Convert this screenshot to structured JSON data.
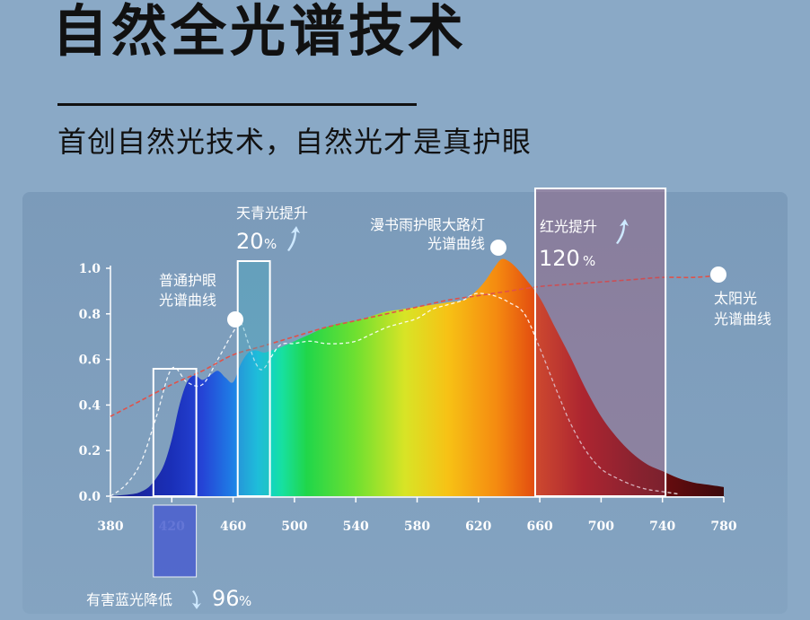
{
  "header": {
    "title": "自然全光谱技术",
    "subtitle": "首创自然光技术，自然光才是真护眼"
  },
  "chart_data": {
    "type": "area",
    "xlim": [
      380,
      780
    ],
    "ylim": [
      0,
      1.0
    ],
    "x_ticks": [
      "380",
      "420",
      "460",
      "500",
      "540",
      "580",
      "620",
      "660",
      "700",
      "740",
      "780"
    ],
    "y_ticks": [
      "0.0",
      "0.2",
      "0.4",
      "0.6",
      "0.8",
      "1.0"
    ],
    "series": [
      {
        "name": "漫书雨护眼大路灯光谱曲线",
        "style": "filled-spectrum",
        "x": [
          380,
          395,
          400,
          405,
          410,
          415,
          420,
          425,
          430,
          435,
          440,
          445,
          450,
          455,
          460,
          465,
          470,
          475,
          480,
          485,
          490,
          500,
          510,
          520,
          530,
          540,
          550,
          560,
          570,
          580,
          590,
          600,
          610,
          615,
          620,
          625,
          630,
          635,
          640,
          645,
          650,
          660,
          670,
          680,
          690,
          700,
          710,
          720,
          730,
          740,
          750,
          760,
          770,
          780
        ],
        "y": [
          0.0,
          0.01,
          0.02,
          0.04,
          0.08,
          0.14,
          0.25,
          0.4,
          0.5,
          0.53,
          0.51,
          0.53,
          0.55,
          0.52,
          0.5,
          0.58,
          0.63,
          0.64,
          0.63,
          0.64,
          0.65,
          0.68,
          0.71,
          0.74,
          0.76,
          0.77,
          0.79,
          0.81,
          0.82,
          0.83,
          0.84,
          0.85,
          0.86,
          0.88,
          0.91,
          0.95,
          1.0,
          1.04,
          1.03,
          1.0,
          0.96,
          0.87,
          0.74,
          0.61,
          0.47,
          0.35,
          0.26,
          0.19,
          0.14,
          0.11,
          0.08,
          0.06,
          0.05,
          0.04
        ]
      },
      {
        "name": "普通护眼光谱曲线",
        "style": "dashed-white",
        "x": [
          380,
          390,
          400,
          410,
          420,
          430,
          440,
          450,
          460,
          465,
          470,
          475,
          480,
          490,
          500,
          510,
          520,
          530,
          540,
          550,
          560,
          570,
          580,
          590,
          600,
          610,
          615,
          620,
          630,
          640,
          650,
          660,
          670,
          680,
          690,
          700,
          710,
          720,
          730,
          740,
          750
        ],
        "y": [
          0.0,
          0.05,
          0.15,
          0.35,
          0.56,
          0.5,
          0.49,
          0.6,
          0.72,
          0.76,
          0.67,
          0.58,
          0.56,
          0.66,
          0.67,
          0.68,
          0.67,
          0.67,
          0.68,
          0.71,
          0.74,
          0.76,
          0.78,
          0.82,
          0.84,
          0.86,
          0.88,
          0.89,
          0.88,
          0.85,
          0.8,
          0.65,
          0.48,
          0.32,
          0.2,
          0.12,
          0.08,
          0.05,
          0.03,
          0.02,
          0.01
        ]
      },
      {
        "name": "太阳光光谱曲线",
        "style": "dashed-red",
        "x": [
          380,
          400,
          420,
          440,
          460,
          480,
          500,
          520,
          540,
          560,
          580,
          600,
          620,
          640,
          660,
          680,
          700,
          720,
          740,
          760,
          780
        ],
        "y": [
          0.35,
          0.42,
          0.49,
          0.55,
          0.62,
          0.66,
          0.7,
          0.74,
          0.77,
          0.8,
          0.83,
          0.86,
          0.88,
          0.9,
          0.92,
          0.93,
          0.94,
          0.95,
          0.96,
          0.96,
          0.97
        ]
      }
    ],
    "annotations": {
      "sky_blue": {
        "label": "天青光提升",
        "value": "20",
        "unit": "%"
      },
      "red": {
        "label": "红光提升",
        "value": "120",
        "unit": "%"
      },
      "harmful_blue": {
        "label": "有害蓝光降低",
        "value": "96",
        "unit": "%"
      },
      "ordinary_line1": "普通护眼",
      "ordinary_line2": "光谱曲线",
      "brand_line1": "漫书雨护眼大路灯",
      "brand_line2": "光谱曲线",
      "sun_line1": "太阳光",
      "sun_line2": "光谱曲线"
    },
    "highlight_ranges": [
      {
        "name": "harmful-blue-box",
        "x": [
          408,
          436
        ]
      },
      {
        "name": "sky-blue-box",
        "x": [
          463,
          484
        ]
      },
      {
        "name": "red-box",
        "x": [
          657,
          742
        ]
      }
    ],
    "colors": {
      "sun_line": "#e0524a",
      "box_stroke": "#ffffff",
      "harmful_fill": "#4a5fcf",
      "sky_fill": "#3aa8c0",
      "red_fill": "#a34b6a"
    }
  }
}
